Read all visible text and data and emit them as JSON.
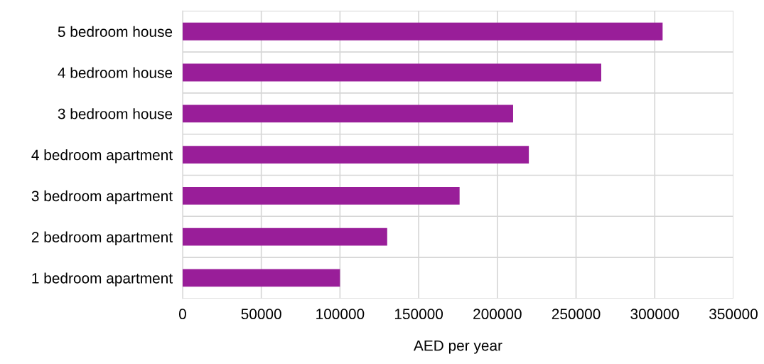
{
  "chart_data": {
    "type": "bar",
    "orientation": "horizontal",
    "xlabel": "AED per year",
    "categories": [
      "5 bedroom house",
      "4 bedroom house",
      "3 bedroom house",
      "4 bedroom apartment",
      "3 bedroom apartment",
      "2 bedroom apartment",
      "1 bedroom apartment"
    ],
    "values": [
      305000,
      266000,
      210000,
      220000,
      176000,
      130000,
      100000
    ],
    "color": "#991e99",
    "xlim": [
      0,
      350000
    ],
    "xticks": [
      0,
      50000,
      100000,
      150000,
      200000,
      250000,
      300000,
      350000
    ],
    "grid": true
  }
}
